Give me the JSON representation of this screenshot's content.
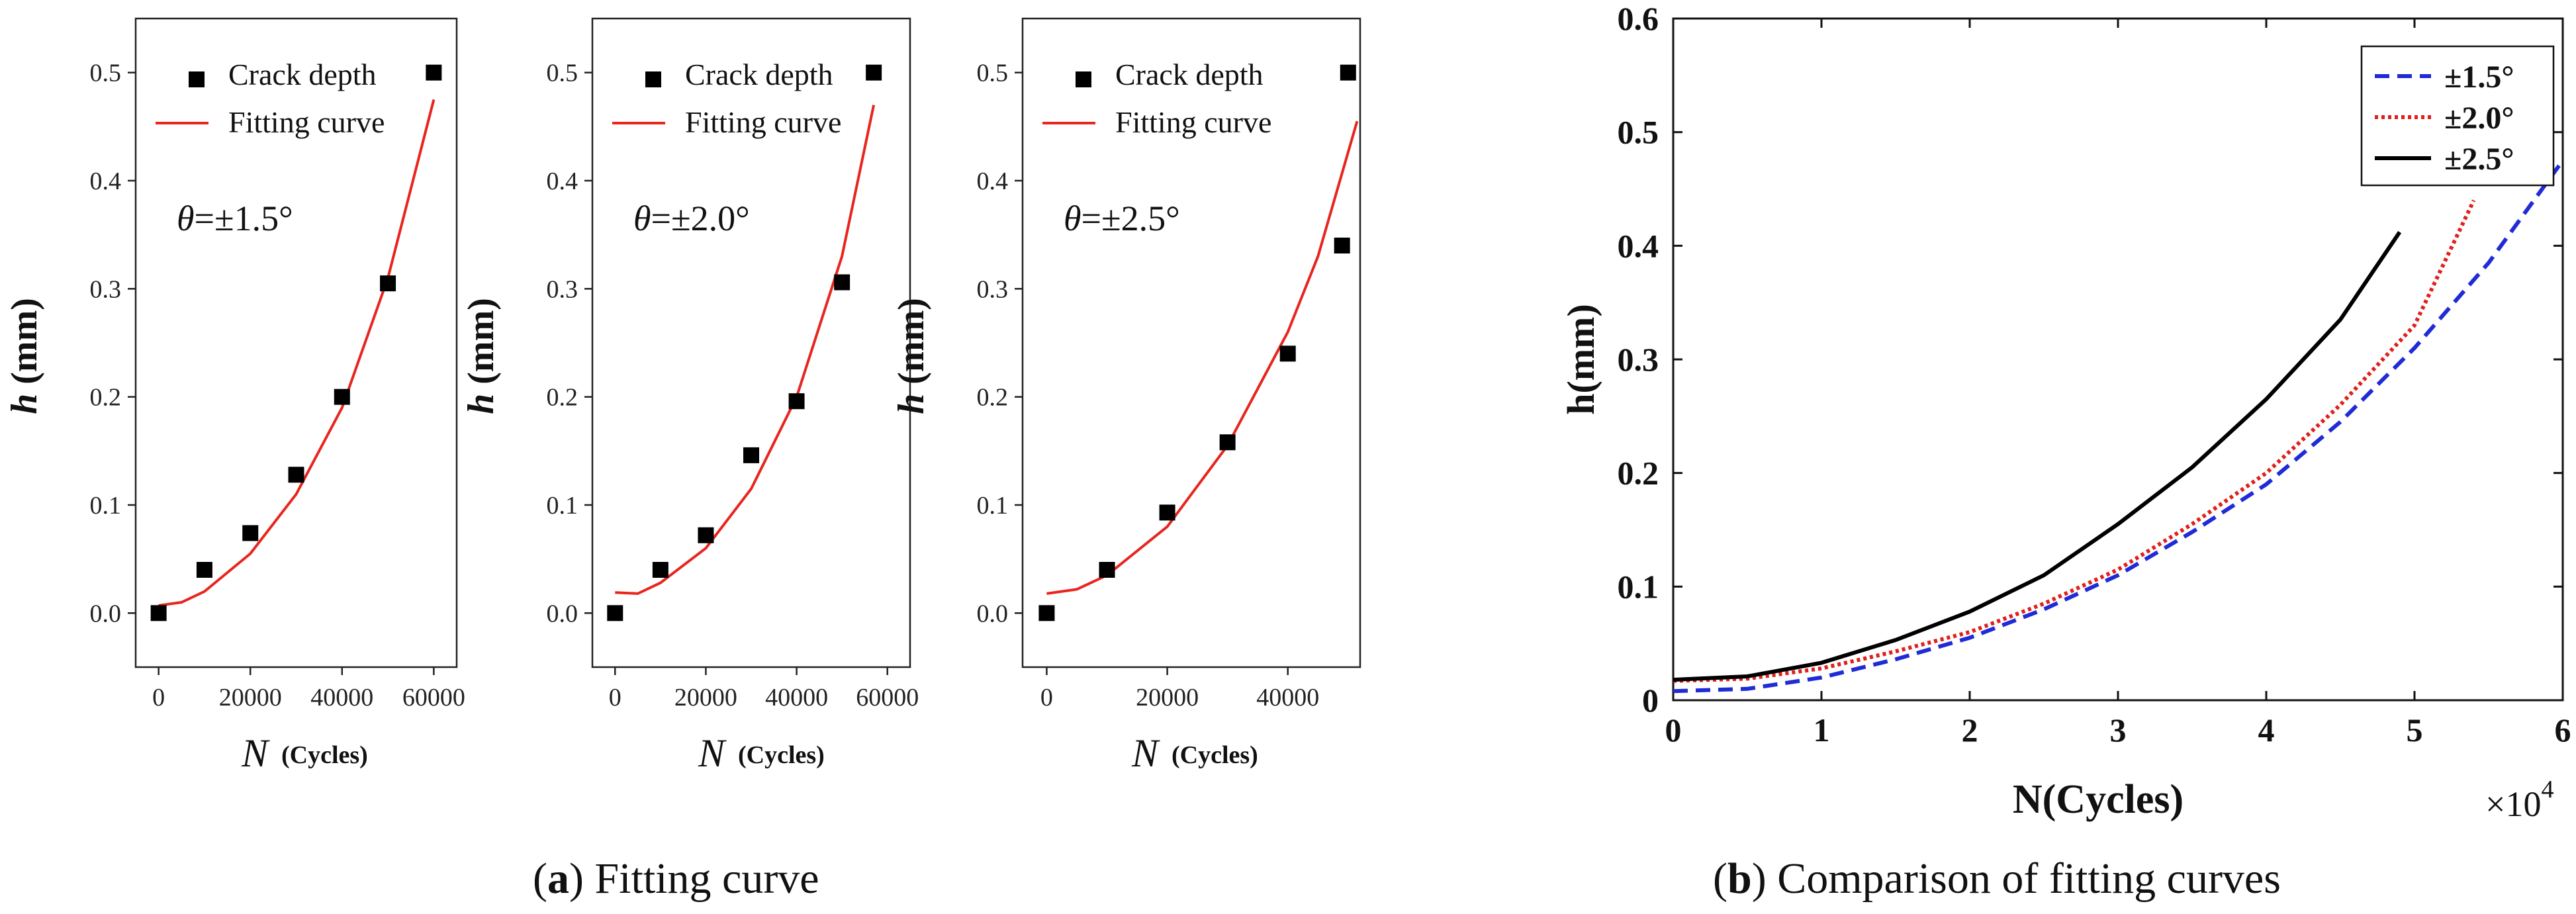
{
  "chart_data": [
    {
      "type": "scatter",
      "panel": "a1",
      "xlabel_symbol": "N",
      "xlabel_unit": "(Cycles)",
      "ylabel_symbol": "h",
      "ylabel_unit": " (mm)",
      "annotation_symbol": "θ",
      "annotation_value": "=±1.5°",
      "xlim": [
        -5000,
        65000
      ],
      "ylim": [
        -0.05,
        0.55
      ],
      "xticks": [
        0,
        20000,
        40000,
        60000
      ],
      "xtick_labels": [
        "0",
        "20000",
        "40000",
        "60000"
      ],
      "yticks": [
        0.0,
        0.1,
        0.2,
        0.3,
        0.4,
        0.5
      ],
      "ytick_labels": [
        "0.0",
        "0.1",
        "0.2",
        "0.3",
        "0.4",
        "0.5"
      ],
      "legend": [
        "Crack depth",
        "Fitting curve"
      ],
      "points": {
        "x": [
          0,
          10000,
          20000,
          30000,
          40000,
          50000,
          60000
        ],
        "y": [
          0.0,
          0.04,
          0.074,
          0.128,
          0.2,
          0.305,
          0.5
        ]
      },
      "fit": {
        "x": [
          0,
          5000,
          10000,
          20000,
          30000,
          40000,
          50000,
          60000
        ],
        "y": [
          0.007,
          0.01,
          0.02,
          0.055,
          0.11,
          0.19,
          0.31,
          0.475
        ]
      }
    },
    {
      "type": "scatter",
      "panel": "a2",
      "xlabel_symbol": "N",
      "xlabel_unit": "(Cycles)",
      "ylabel_symbol": "h",
      "ylabel_unit": " (mm)",
      "annotation_symbol": "θ",
      "annotation_value": "=±2.0°",
      "xlim": [
        -5000,
        65000
      ],
      "ylim": [
        -0.05,
        0.55
      ],
      "xticks": [
        0,
        20000,
        40000,
        60000
      ],
      "xtick_labels": [
        "0",
        "20000",
        "40000",
        "60000"
      ],
      "yticks": [
        0.0,
        0.1,
        0.2,
        0.3,
        0.4,
        0.5
      ],
      "ytick_labels": [
        "0.0",
        "0.1",
        "0.2",
        "0.3",
        "0.4",
        "0.5"
      ],
      "legend": [
        "Crack depth",
        "Fitting curve"
      ],
      "points": {
        "x": [
          0,
          10000,
          20000,
          30000,
          40000,
          50000,
          57000
        ],
        "y": [
          0.0,
          0.04,
          0.072,
          0.146,
          0.196,
          0.306,
          0.5
        ]
      },
      "fit": {
        "x": [
          0,
          5000,
          10000,
          20000,
          30000,
          40000,
          50000,
          57000
        ],
        "y": [
          0.019,
          0.018,
          0.028,
          0.06,
          0.115,
          0.2,
          0.33,
          0.47
        ]
      }
    },
    {
      "type": "scatter",
      "panel": "a3",
      "xlabel_symbol": "N",
      "xlabel_unit": "(Cycles)",
      "ylabel_symbol": "h",
      "ylabel_unit": " (mm)",
      "annotation_symbol": "θ",
      "annotation_value": "=±2.5°",
      "xlim": [
        -4000,
        52000
      ],
      "ylim": [
        -0.05,
        0.55
      ],
      "xticks": [
        0,
        20000,
        40000
      ],
      "xtick_labels": [
        "0",
        "20000",
        "40000"
      ],
      "yticks": [
        0.0,
        0.1,
        0.2,
        0.3,
        0.4,
        0.5
      ],
      "ytick_labels": [
        "0.0",
        "0.1",
        "0.2",
        "0.3",
        "0.4",
        "0.5"
      ],
      "legend": [
        "Crack depth",
        "Fitting curve"
      ],
      "points": {
        "x": [
          0,
          10000,
          20000,
          30000,
          40000,
          49000,
          50000
        ],
        "y": [
          0.0,
          0.04,
          0.093,
          0.158,
          0.24,
          0.34,
          0.5
        ]
      },
      "fit": {
        "x": [
          0,
          5000,
          10000,
          20000,
          30000,
          40000,
          45000,
          51500
        ],
        "y": [
          0.018,
          0.022,
          0.035,
          0.08,
          0.155,
          0.26,
          0.33,
          0.455
        ]
      }
    },
    {
      "type": "line",
      "panel": "b",
      "xlabel": "N(Cycles)",
      "ylabel": "h(mm)",
      "x_multiplier": "×10",
      "x_multiplier_exp": "4",
      "xlim": [
        0,
        6
      ],
      "ylim": [
        0,
        0.6
      ],
      "xticks": [
        0,
        1,
        2,
        3,
        4,
        5,
        6
      ],
      "xtick_labels": [
        "0",
        "1",
        "2",
        "3",
        "4",
        "5",
        "6"
      ],
      "yticks": [
        0,
        0.1,
        0.2,
        0.3,
        0.4,
        0.5,
        0.6
      ],
      "ytick_labels": [
        "0",
        "0.1",
        "0.2",
        "0.3",
        "0.4",
        "0.5",
        "0.6"
      ],
      "legend_position": "top-right",
      "series": [
        {
          "name": "±1.5°",
          "color": "#1f2bd6",
          "style": "dashed",
          "x": [
            0,
            0.5,
            1,
            1.5,
            2,
            2.5,
            3,
            3.5,
            4,
            4.5,
            5,
            5.5,
            6
          ],
          "y": [
            0.008,
            0.01,
            0.02,
            0.036,
            0.055,
            0.08,
            0.11,
            0.148,
            0.19,
            0.245,
            0.31,
            0.385,
            0.475
          ]
        },
        {
          "name": "±2.0°",
          "color": "#e0201c",
          "style": "dotted",
          "x": [
            0,
            0.5,
            1,
            1.5,
            2,
            2.5,
            3,
            3.5,
            4,
            4.5,
            5,
            5.4
          ],
          "y": [
            0.017,
            0.019,
            0.028,
            0.043,
            0.06,
            0.085,
            0.115,
            0.155,
            0.2,
            0.26,
            0.33,
            0.44
          ]
        },
        {
          "name": "±2.5°",
          "color": "#000000",
          "style": "solid",
          "x": [
            0,
            0.5,
            1,
            1.5,
            2,
            2.5,
            3,
            3.5,
            4,
            4.5,
            4.9
          ],
          "y": [
            0.018,
            0.021,
            0.033,
            0.053,
            0.078,
            0.11,
            0.155,
            0.205,
            0.265,
            0.335,
            0.412
          ]
        }
      ]
    }
  ],
  "captions": {
    "a_letter": "a",
    "a_text": " Fitting curve",
    "b_letter": "b",
    "b_text": " Comparison of fitting curves"
  }
}
